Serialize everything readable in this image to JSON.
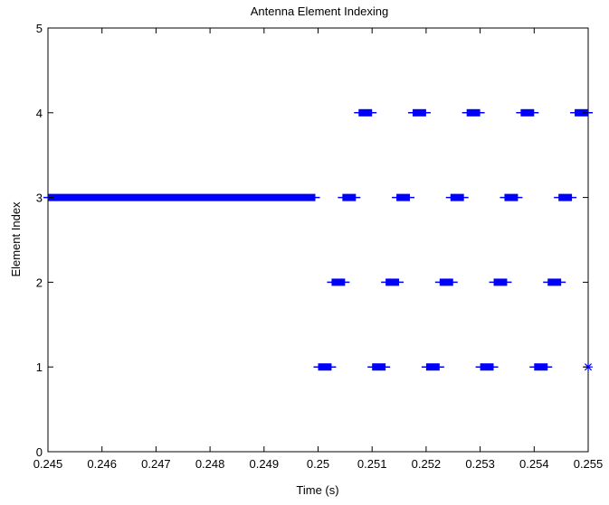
{
  "chart_data": {
    "type": "scatter",
    "title": "Antenna Element Indexing",
    "xlabel": "Time (s)",
    "ylabel": "Element Index",
    "xlim": [
      0.245,
      0.255
    ],
    "ylim": [
      0,
      5
    ],
    "x_ticks": [
      {
        "value": 0.245,
        "label": "0.245"
      },
      {
        "value": 0.246,
        "label": "0.246"
      },
      {
        "value": 0.247,
        "label": "0.247"
      },
      {
        "value": 0.248,
        "label": "0.248"
      },
      {
        "value": 0.249,
        "label": "0.249"
      },
      {
        "value": 0.25,
        "label": "0.25"
      },
      {
        "value": 0.251,
        "label": "0.251"
      },
      {
        "value": 0.252,
        "label": "0.252"
      },
      {
        "value": 0.253,
        "label": "0.253"
      },
      {
        "value": 0.254,
        "label": "0.254"
      },
      {
        "value": 0.255,
        "label": "0.255"
      }
    ],
    "y_ticks": [
      {
        "value": 0,
        "label": "0"
      },
      {
        "value": 1,
        "label": "1"
      },
      {
        "value": 2,
        "label": "2"
      },
      {
        "value": 3,
        "label": "3"
      },
      {
        "value": 4,
        "label": "4"
      },
      {
        "value": 5,
        "label": "5"
      }
    ],
    "grid": false,
    "marker": "asterisk",
    "marker_color": "#0000ff",
    "series": [
      {
        "y": 3,
        "x_clusters": [
          [
            0.245,
            0.24995
          ],
          [
            0.25045,
            0.2507
          ],
          [
            0.25145,
            0.2517
          ],
          [
            0.25245,
            0.2527
          ],
          [
            0.25345,
            0.2537
          ],
          [
            0.25445,
            0.2547
          ]
        ]
      },
      {
        "y": 4,
        "x_clusters": [
          [
            0.25075,
            0.251
          ],
          [
            0.25175,
            0.252
          ],
          [
            0.25275,
            0.253
          ],
          [
            0.25375,
            0.254
          ],
          [
            0.25475,
            0.255
          ]
        ]
      },
      {
        "y": 2,
        "x_clusters": [
          [
            0.25025,
            0.2505
          ],
          [
            0.25125,
            0.2515
          ],
          [
            0.25225,
            0.2525
          ],
          [
            0.25325,
            0.2535
          ],
          [
            0.25425,
            0.2545
          ]
        ]
      },
      {
        "y": 1,
        "x_clusters": [
          [
            0.25,
            0.25025
          ],
          [
            0.251,
            0.25125
          ],
          [
            0.252,
            0.25225
          ],
          [
            0.253,
            0.25325
          ],
          [
            0.254,
            0.25425
          ],
          [
            0.255,
            0.255
          ]
        ]
      }
    ]
  }
}
